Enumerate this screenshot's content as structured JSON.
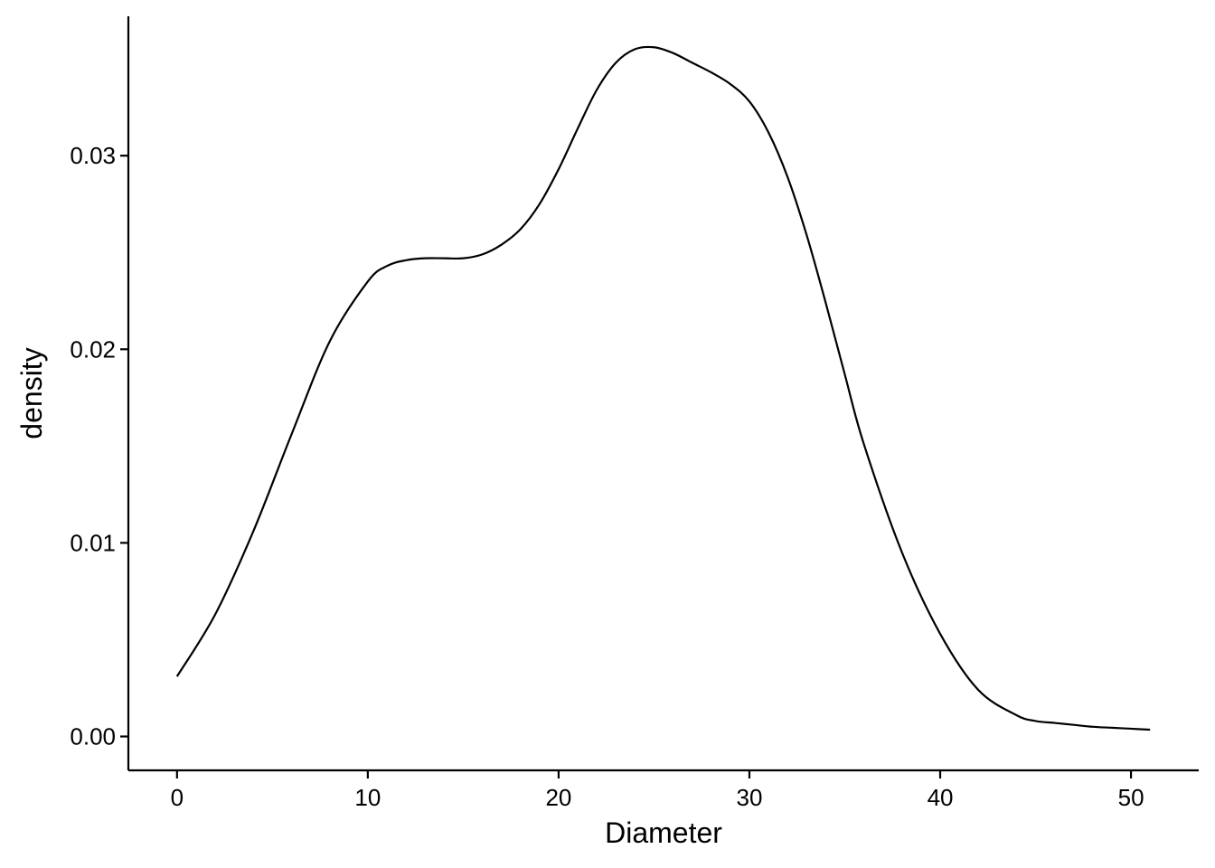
{
  "chart_data": {
    "type": "line",
    "xlabel": "Diameter",
    "ylabel": "density",
    "xlim": [
      -2.55,
      53.55
    ],
    "ylim": [
      -0.00175,
      0.0372
    ],
    "x_ticks": [
      0,
      10,
      20,
      30,
      40,
      50
    ],
    "x_tick_labels": [
      "0",
      "10",
      "20",
      "30",
      "40",
      "50"
    ],
    "y_ticks": [
      0.0,
      0.01,
      0.02,
      0.03
    ],
    "y_tick_labels": [
      "0.00",
      "0.01",
      "0.02",
      "0.03"
    ],
    "grid": false,
    "line_color": "#000000",
    "series": [
      {
        "x": [
          0,
          2,
          4,
          6,
          8,
          10,
          11,
          12,
          13,
          14,
          15,
          16,
          17,
          18,
          19,
          20,
          21,
          22,
          23,
          24,
          25,
          26,
          27,
          28,
          29,
          30,
          31,
          32,
          33,
          34,
          35,
          36,
          38,
          40,
          42,
          44,
          45,
          46,
          47,
          48,
          49,
          50,
          51
        ],
        "y": [
          0.0031,
          0.0063,
          0.0106,
          0.0156,
          0.0204,
          0.0235,
          0.0243,
          0.0246,
          0.0247,
          0.0247,
          0.0247,
          0.0249,
          0.0254,
          0.0262,
          0.0275,
          0.0293,
          0.0314,
          0.0334,
          0.0348,
          0.0355,
          0.0356,
          0.0353,
          0.0348,
          0.0343,
          0.0337,
          0.0328,
          0.0312,
          0.0289,
          0.0259,
          0.0224,
          0.0187,
          0.0151,
          0.0095,
          0.0053,
          0.0024,
          0.0011,
          0.0008,
          0.0007,
          0.0006,
          0.0005,
          0.00045,
          0.0004,
          0.00035
        ]
      }
    ]
  }
}
